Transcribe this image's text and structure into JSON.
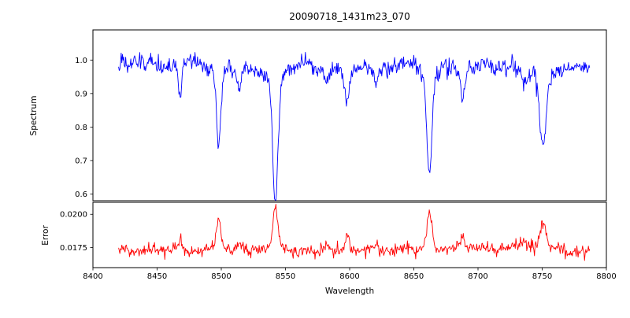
{
  "figure": {
    "background": "#ffffff"
  },
  "x_axis": {
    "label": "Wavelength",
    "ticks": [
      {
        "v": 8400,
        "label": "8400"
      },
      {
        "v": 8450,
        "label": "8450"
      },
      {
        "v": 8500,
        "label": "8500"
      },
      {
        "v": 8550,
        "label": "8550"
      },
      {
        "v": 8600,
        "label": "8600"
      },
      {
        "v": 8650,
        "label": "8650"
      },
      {
        "v": 8700,
        "label": "8700"
      },
      {
        "v": 8750,
        "label": "8750"
      },
      {
        "v": 8800,
        "label": "8800"
      }
    ]
  },
  "chart_data": [
    {
      "type": "line",
      "name": "spectrum",
      "title": "20090718_1431m23_070",
      "ylabel": "Spectrum",
      "color": "#0000ff",
      "line_width": 0.9,
      "xlim": [
        8400,
        8800
      ],
      "ylim": [
        0.58,
        1.09
      ],
      "yticks": [
        {
          "v": 0.6,
          "label": "0.6"
        },
        {
          "v": 0.7,
          "label": "0.7"
        },
        {
          "v": 0.8,
          "label": "0.8"
        },
        {
          "v": 0.9,
          "label": "0.9"
        },
        {
          "v": 1.0,
          "label": "1.0"
        }
      ],
      "x_start": 8420,
      "x_end": 8787,
      "x_step": 0.5,
      "continuum": 0.985,
      "noise_std": 0.013,
      "absorption_lines": [
        {
          "center": 8468.0,
          "depth": 0.09,
          "sigma": 1.3
        },
        {
          "center": 8498.0,
          "depth": 0.25,
          "sigma": 1.6
        },
        {
          "center": 8514.0,
          "depth": 0.06,
          "sigma": 1.2
        },
        {
          "center": 8542.1,
          "depth": 0.4,
          "sigma": 1.9
        },
        {
          "center": 8582.0,
          "depth": 0.05,
          "sigma": 1.3
        },
        {
          "center": 8598.0,
          "depth": 0.11,
          "sigma": 1.6
        },
        {
          "center": 8621.0,
          "depth": 0.05,
          "sigma": 1.3
        },
        {
          "center": 8662.1,
          "depth": 0.32,
          "sigma": 1.9
        },
        {
          "center": 8688.0,
          "depth": 0.1,
          "sigma": 1.6
        },
        {
          "center": 8736.0,
          "depth": 0.05,
          "sigma": 4.0
        },
        {
          "center": 8750.5,
          "depth": 0.24,
          "sigma": 2.4
        }
      ]
    },
    {
      "type": "line",
      "name": "error",
      "ylabel": "Error",
      "color": "#ff0000",
      "line_width": 0.9,
      "xlim": [
        8400,
        8800
      ],
      "ylim": [
        0.016,
        0.0209
      ],
      "yticks": [
        {
          "v": 0.0175,
          "label": "0.0175"
        },
        {
          "v": 0.02,
          "label": "0.0200"
        }
      ],
      "baseline": 0.0173,
      "noise_std": 0.00022,
      "bump_scale": 0.009
    }
  ]
}
